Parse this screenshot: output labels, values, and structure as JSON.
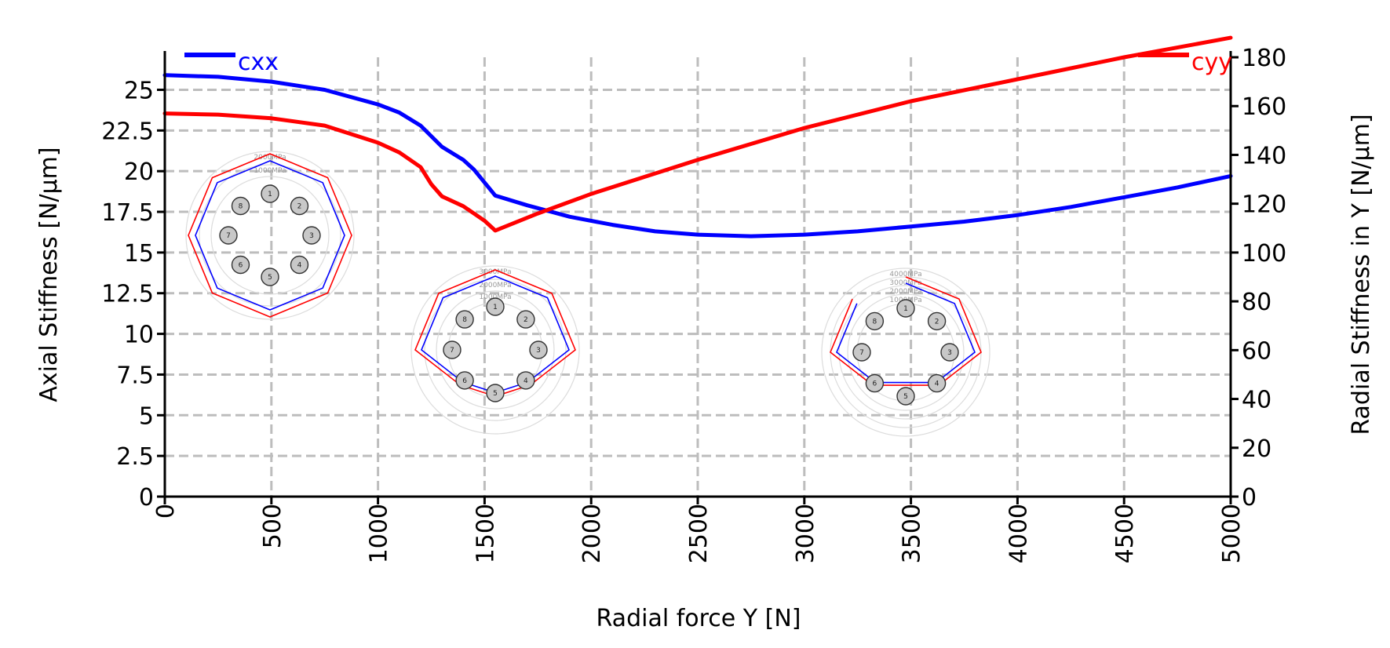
{
  "chart_data": {
    "type": "line",
    "xlabel": "Radial force Y [N]",
    "ylabel_left": "Axial Stiffness [N/µm]",
    "ylabel_right": "Radial Stiffness in Y [N/µm]",
    "xlim": [
      0,
      5000
    ],
    "ylim_left": [
      0,
      27
    ],
    "ylim_right": [
      0,
      180
    ],
    "xticks": [
      "0",
      "500",
      "1000",
      "1500",
      "2000",
      "2500",
      "3000",
      "3500",
      "4000",
      "4500",
      "5000"
    ],
    "yticks_left": [
      "0",
      "2.5",
      "5",
      "7.5",
      "10",
      "12.5",
      "15",
      "17.5",
      "20",
      "22.5",
      "25"
    ],
    "yticks_right": [
      "0",
      "20",
      "40",
      "60",
      "80",
      "100",
      "120",
      "140",
      "160",
      "180"
    ],
    "grid": true,
    "series": [
      {
        "name": "cxx",
        "axis": "left",
        "color": "#0000ff",
        "x": [
          0,
          250,
          500,
          750,
          1000,
          1100,
          1200,
          1300,
          1400,
          1450,
          1500,
          1550,
          1700,
          1900,
          2100,
          2300,
          2500,
          2750,
          3000,
          3250,
          3500,
          3750,
          4000,
          4250,
          4500,
          4750,
          5000
        ],
        "y": [
          25.9,
          25.8,
          25.5,
          25.0,
          24.1,
          23.6,
          22.8,
          21.5,
          20.7,
          20.1,
          19.3,
          18.5,
          17.9,
          17.2,
          16.7,
          16.3,
          16.1,
          16.0,
          16.1,
          16.3,
          16.6,
          16.9,
          17.3,
          17.8,
          18.4,
          19.0,
          19.7
        ]
      },
      {
        "name": "cyy",
        "axis": "right",
        "color": "#ff0000",
        "x": [
          0,
          250,
          500,
          750,
          1000,
          1100,
          1200,
          1250,
          1300,
          1400,
          1450,
          1500,
          1550,
          1750,
          2000,
          2500,
          3000,
          3500,
          4000,
          4500,
          5000
        ],
        "y": [
          157,
          156.5,
          155,
          152,
          145,
          141,
          135,
          128,
          123,
          119,
          116,
          113,
          109,
          116,
          124,
          138,
          151,
          162,
          171,
          180,
          188
        ]
      }
    ],
    "legend": [
      "cxx",
      "cyy"
    ],
    "inset_diagrams": [
      {
        "ring_labels": [
          "2000MPa",
          "1000MPa"
        ],
        "balls": [
          "1",
          "2",
          "3",
          "4",
          "5",
          "6",
          "7",
          "8"
        ]
      },
      {
        "ring_labels": [
          "3000MPa",
          "2000MPa",
          "1000MPa"
        ],
        "balls": [
          "1",
          "2",
          "3",
          "4",
          "5",
          "6",
          "7",
          "8"
        ]
      },
      {
        "ring_labels": [
          "4000MPa",
          "3000MPa",
          "2000MPa",
          "1000MPa"
        ],
        "balls": [
          "1",
          "2",
          "3",
          "4",
          "5",
          "6",
          "7",
          "8"
        ]
      }
    ]
  }
}
